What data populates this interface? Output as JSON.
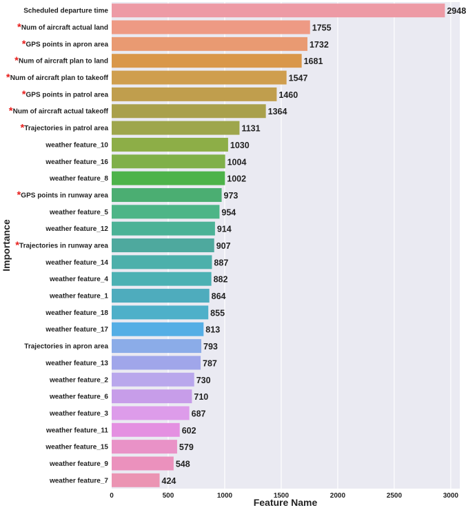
{
  "chart_data": {
    "type": "bar",
    "orientation": "horizontal",
    "xlabel": "Feature Name",
    "ylabel": "Importance",
    "xlim": [
      0,
      3080
    ],
    "xticks": [
      0,
      500,
      1000,
      1500,
      2000,
      2500,
      3000
    ],
    "grid": true,
    "star_marker": "*",
    "categories": [
      "Scheduled departure time",
      "Num of aircraft actual land",
      "GPS points in apron area",
      "Num of aircraft plan to land",
      "Num of aircraft plan to takeoff",
      "GPS points in patrol area",
      "Num of aircraft actual takeoff",
      "Trajectories in patrol area",
      "weather feature_10",
      "weather feature_16",
      "weather feature_8",
      "GPS points in runway area",
      "weather feature_5",
      "weather feature_12",
      "Trajectories in runway area",
      "weather feature_14",
      "weather feature_4",
      "weather feature_1",
      "weather feature_18",
      "weather feature_17",
      "Trajectories in apron area",
      "weather feature_13",
      "weather feature_2",
      "weather feature_6",
      "weather feature_3",
      "weather feature_11",
      "weather feature_15",
      "weather feature_9",
      "weather feature_7"
    ],
    "values": [
      2948,
      1755,
      1732,
      1681,
      1547,
      1460,
      1364,
      1131,
      1030,
      1004,
      1002,
      973,
      954,
      914,
      907,
      887,
      882,
      864,
      855,
      813,
      793,
      787,
      730,
      710,
      687,
      602,
      579,
      548,
      424
    ],
    "starred": [
      false,
      true,
      true,
      true,
      true,
      true,
      true,
      true,
      false,
      false,
      false,
      true,
      false,
      false,
      true,
      false,
      false,
      false,
      false,
      false,
      false,
      false,
      false,
      false,
      false,
      false,
      false,
      false,
      false
    ],
    "colors": [
      "#ED9AA5",
      "#EE9A84",
      "#E99A72",
      "#D9974A",
      "#CF9E4E",
      "#C09E4D",
      "#A9A04B",
      "#9EA64C",
      "#8DAE47",
      "#80B049",
      "#4DB34A",
      "#4BAE72",
      "#4DB587",
      "#4BB296",
      "#4EA99E",
      "#4CB0AB",
      "#4CB1B3",
      "#4EACBD",
      "#4EB0C9",
      "#55AEE5",
      "#8BACE8",
      "#A0A6EA",
      "#B9A7EC",
      "#C79DE9",
      "#DD9CEA",
      "#E490E1",
      "#E992C7",
      "#EB91BD",
      "#EB94B3"
    ],
    "star_color": "#E8201E",
    "background": "#EAEAF2",
    "grid_color": "#FFFFFF"
  }
}
